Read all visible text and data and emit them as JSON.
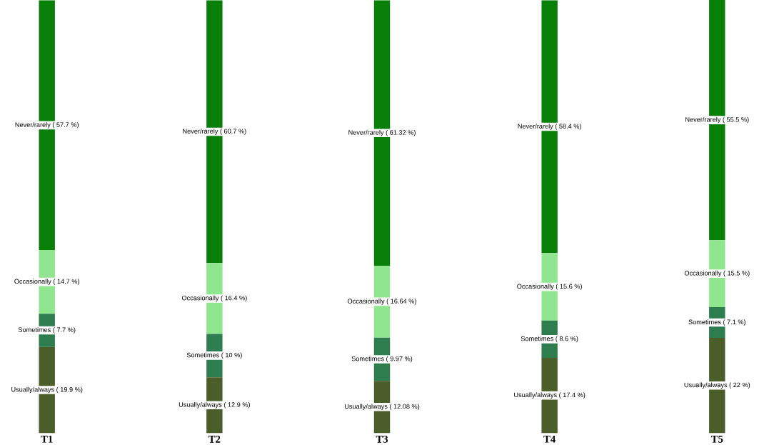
{
  "chart_data": {
    "type": "bar",
    "stacked": true,
    "categories": [
      "T1",
      "T2",
      "T3",
      "T4",
      "T5"
    ],
    "series": [
      {
        "color": "#4b5e2a",
        "values": [
          19.9,
          12.9,
          12.08,
          17.4,
          22
        ],
        "value_labels": [
          "Usually/always ( 19.9 %)",
          "Usually/always ( 12.9 %)",
          "Usually/always ( 12.08 %)",
          "Usually/always ( 17.4 %)",
          "Usually/always ( 22 %)"
        ]
      },
      {
        "color": "#2e7d4f",
        "values": [
          7.7,
          10,
          9.97,
          8.6,
          7.1
        ],
        "value_labels": [
          "Sometimes ( 7.7 %)",
          "Sometimes ( 10 %)",
          "Sometimes ( 9.97 %)",
          "Sometimes ( 8.6 %)",
          "Sometimes ( 7.1 %)"
        ]
      },
      {
        "color": "#8fe68f",
        "values": [
          14.7,
          16.4,
          16.64,
          15.6,
          15.5
        ],
        "value_labels": [
          "Occasionally ( 14.7 %)",
          "Occasionally ( 16.4 %)",
          "Occasionally ( 16.64 %)",
          "Occasionally ( 15.6 %)",
          "Occasionally ( 15.5 %)"
        ]
      },
      {
        "color": "#087f08",
        "values": [
          57.7,
          60.7,
          61.32,
          58.4,
          55.5
        ],
        "value_labels": [
          "Never/rarely ( 57.7 %)",
          "Never/rarely ( 60.7 %)",
          "Never/rarely ( 61.32 %)",
          "Never/rarely ( 58.4 %)",
          "Never/rarely ( 55.5 %)"
        ]
      }
    ]
  }
}
